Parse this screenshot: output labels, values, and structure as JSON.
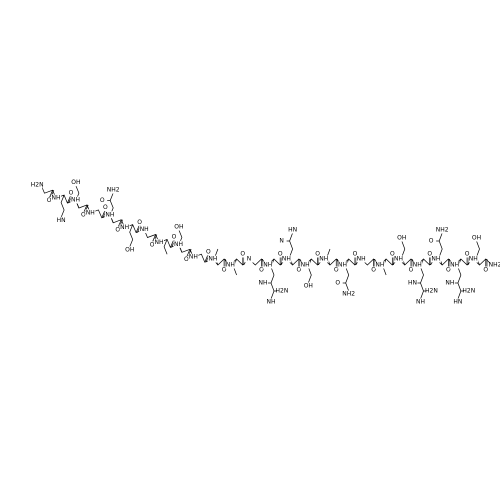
{
  "molecule": {
    "n_terminus": "H2N",
    "residues": [
      {
        "carbonyl": "O",
        "side_chain": []
      },
      {
        "amide": "NH",
        "carbonyl": "O",
        "side_chain": [
          "HN"
        ]
      },
      {
        "amide": "NH",
        "carbonyl": "O",
        "side_chain": [
          "OH"
        ]
      },
      {
        "amide": "NH",
        "carbonyl": "O",
        "side_chain": []
      },
      {
        "amide": "NH",
        "carbonyl": "O",
        "side_chain": [
          "O",
          "NH2"
        ]
      },
      {
        "amide": "NH",
        "carbonyl": "O",
        "side_chain": [
          "OH"
        ]
      },
      {
        "amide": "NH",
        "carbonyl": "O",
        "side_chain": []
      },
      {
        "amide": "NH",
        "carbonyl": "O",
        "side_chain": []
      },
      {
        "amide": "NH",
        "carbonyl": "O",
        "side_chain": [
          "OH"
        ]
      },
      {
        "amide": "NH",
        "carbonyl": "O",
        "side_chain": []
      },
      {
        "amide": "NH",
        "carbonyl": "O",
        "side_chain": []
      },
      {
        "amide": "NH",
        "carbonyl": "O",
        "side_chain": []
      },
      {
        "amide": "N",
        "carbonyl": "O",
        "side_chain": []
      },
      {
        "amide": "NH",
        "carbonyl": "O",
        "side_chain": [
          "NH",
          "H2N",
          "NH"
        ]
      },
      {
        "amide": "NH",
        "carbonyl": "O",
        "side_chain": [
          "N",
          "HN"
        ]
      },
      {
        "amide": "NH",
        "carbonyl": "O",
        "side_chain": [
          "OH"
        ]
      },
      {
        "amide": "NH",
        "carbonyl": "O",
        "side_chain": []
      },
      {
        "amide": "NH",
        "carbonyl": "O",
        "side_chain": [
          "O",
          "NH2"
        ]
      },
      {
        "amide": "NH",
        "carbonyl": "O",
        "side_chain": []
      },
      {
        "amide": "NH",
        "carbonyl": "O",
        "side_chain": []
      },
      {
        "amide": "NH",
        "carbonyl": "O",
        "side_chain": [
          "OH"
        ]
      },
      {
        "amide": "NH",
        "carbonyl": "O",
        "side_chain": [
          "HN",
          "H2N",
          "NH"
        ]
      },
      {
        "amide": "NH",
        "carbonyl": "O",
        "side_chain": [
          "O",
          "NH2"
        ]
      },
      {
        "amide": "NH",
        "carbonyl": "O",
        "side_chain": [
          "NH",
          "H2N",
          "HN"
        ]
      },
      {
        "amide": "NH",
        "carbonyl": "O",
        "side_chain": [
          "OH"
        ]
      }
    ],
    "c_terminus": "NH2"
  }
}
